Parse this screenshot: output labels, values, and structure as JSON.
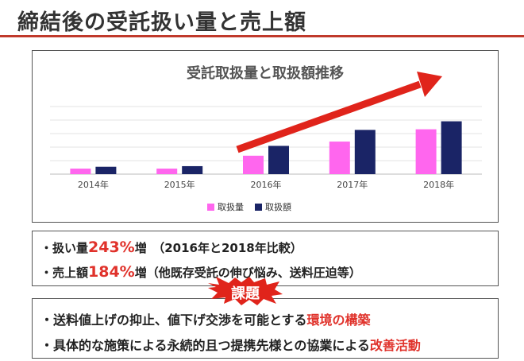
{
  "header": {
    "title": "締結後の受託扱い量と売上額"
  },
  "chart_data": {
    "type": "bar",
    "title": "受託取扱量と取扱額推移",
    "categories": [
      "2014年",
      "2015年",
      "2016年",
      "2017年",
      "2018年"
    ],
    "series": [
      {
        "name": "取扱量",
        "values": [
          9,
          9,
          30,
          53,
          73
        ],
        "color": "#ff66ee"
      },
      {
        "name": "取扱額",
        "values": [
          12,
          13,
          46,
          72,
          86
        ],
        "color": "#1a2466"
      }
    ],
    "ylim": [
      0,
      110
    ],
    "grid": true,
    "legend": "bottom-center",
    "trend_arrow_color": "#e0241b"
  },
  "summary": {
    "line1_prefix": "・扱い量",
    "line1_value": "243%",
    "line1_suffix": "増　（2016年と2018年比較）",
    "line2_prefix": "・売上額",
    "line2_value": "184%",
    "line2_suffix": "増（他既存受託の伸び悩み、送料圧迫等）"
  },
  "issues": {
    "label": "課題",
    "line1_prefix": "・送料値上げの抑止、値下げ交渉を可能とする",
    "line1_highlight": "環境の構築",
    "line2_prefix": "・具体的な施策による永続的且つ提携先様との協業による",
    "line2_highlight": "改善活動"
  },
  "colors": {
    "accent": "#e0322b",
    "rule": "#c0392b"
  }
}
